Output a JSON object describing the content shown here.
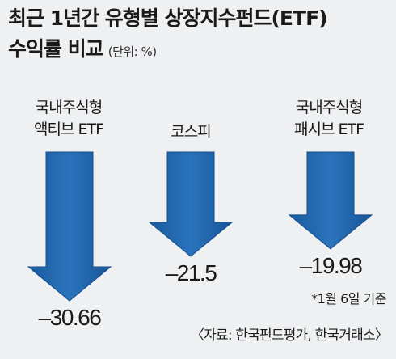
{
  "header": {
    "title_line1": "최근 1년간 유형별 상장지수펀드(ETF)",
    "title_line2": "수익률 비교",
    "unit": "(단위: %)"
  },
  "chart_data": {
    "type": "bar",
    "title": "최근 1년간 유형별 상장지수펀드(ETF) 수익률 비교",
    "categories": [
      [
        "국내주식형",
        "액티브 ETF"
      ],
      [
        "코스피"
      ],
      [
        "국내주식형",
        "패시브 ETF"
      ]
    ],
    "values": [
      -30.66,
      -21.5,
      -19.98
    ],
    "value_labels": [
      "–30.66",
      "–21.5",
      "–19.98"
    ],
    "unit": "%",
    "arrow_color": "#1e63a8"
  },
  "footer": {
    "note": "*1월 6일 기준",
    "source": "〈자료: 한국펀드평가, 한국거래소〉"
  }
}
